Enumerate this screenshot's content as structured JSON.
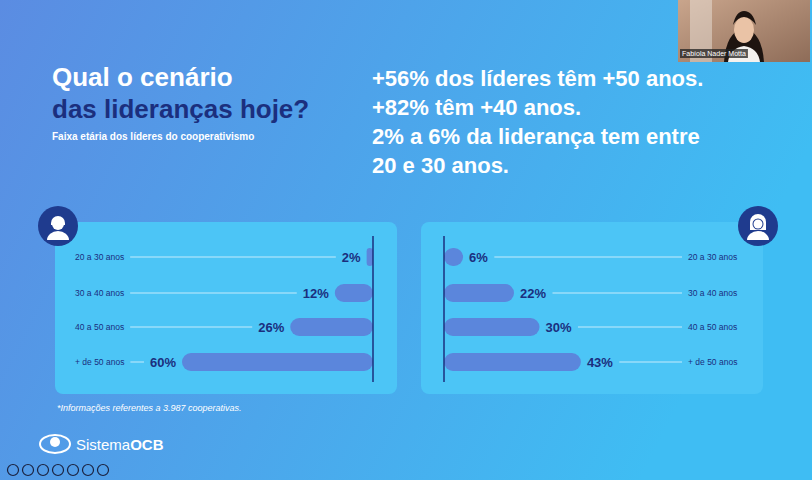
{
  "slide": {
    "title": [
      "Qual o cenário",
      "das lideranças hoje?"
    ],
    "subtitle": "Faixa etária dos líderes do cooperativismo",
    "headline": [
      "+56% dos líderes têm +50 anos.",
      "+82% têm +40 anos.",
      "2% a 6% da liderança tem entre",
      "20 e 30 anos."
    ],
    "footnote": "*Informações referentes a 3.987 cooperativas.",
    "logo": [
      "Sistema",
      "OCB"
    ],
    "presenter": "Fabíola Nader Motta"
  },
  "chart_data": [
    {
      "type": "bar",
      "orientation": "horizontal",
      "categories": [
        "20 a 30 anos",
        "30 a 40 anos",
        "40 a 50 anos",
        "+ de 50 anos"
      ],
      "values": [
        2,
        12,
        26,
        60
      ],
      "value_labels": [
        "2%",
        "12%",
        "26%",
        "60%"
      ],
      "data_labels": true,
      "color": "#5b86dc",
      "xlim": [
        0,
        60
      ]
    },
    {
      "type": "bar",
      "orientation": "horizontal",
      "categories": [
        "20 a 30 anos",
        "30 a 40 anos",
        "40 a 50 anos",
        "+ de 50 anos"
      ],
      "values": [
        6,
        22,
        30,
        43
      ],
      "value_labels": [
        "6%",
        "22%",
        "30%",
        "43%"
      ],
      "data_labels": true,
      "color": "#5b86dc",
      "xlim": [
        0,
        60
      ]
    }
  ]
}
